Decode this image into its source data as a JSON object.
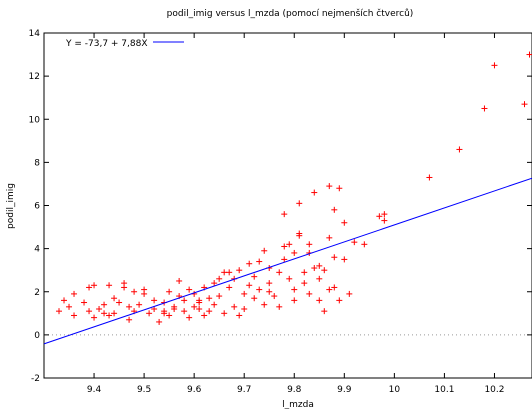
{
  "chart_data": {
    "type": "scatter",
    "title": "podil_imig versus l_mzda (pomocí nejmenších čtverců)",
    "xlabel": "l_mzda",
    "ylabel": "podil_imig",
    "xlim": [
      9.3,
      10.275
    ],
    "ylim": [
      -2,
      14
    ],
    "xticks": [
      "9.4",
      "9.5",
      "9.6",
      "9.7",
      "9.8",
      "9.9",
      "10",
      "10.1",
      "10.2"
    ],
    "yticks": [
      "-2",
      "0",
      "2",
      "4",
      "6",
      "8",
      "10",
      "12",
      "14"
    ],
    "grid": false,
    "zero_line": "dotted",
    "legend_position": "top-left",
    "fit": {
      "label": "Y = -73,7 + 7,88X",
      "intercept": -73.7,
      "slope": 7.88,
      "color": "#0000ff"
    },
    "marker": "+",
    "point_color": "#ff0000",
    "points": [
      [
        9.33,
        1.1
      ],
      [
        9.34,
        1.6
      ],
      [
        9.35,
        1.3
      ],
      [
        9.36,
        0.9
      ],
      [
        9.36,
        1.9
      ],
      [
        9.38,
        1.5
      ],
      [
        9.39,
        2.2
      ],
      [
        9.39,
        1.1
      ],
      [
        9.4,
        2.3
      ],
      [
        9.4,
        0.8
      ],
      [
        9.41,
        1.2
      ],
      [
        9.42,
        1.0
      ],
      [
        9.42,
        1.4
      ],
      [
        9.43,
        0.9
      ],
      [
        9.43,
        2.3
      ],
      [
        9.44,
        1.7
      ],
      [
        9.44,
        1.0
      ],
      [
        9.45,
        1.5
      ],
      [
        9.46,
        2.2
      ],
      [
        9.46,
        2.4
      ],
      [
        9.47,
        1.3
      ],
      [
        9.47,
        0.7
      ],
      [
        9.48,
        1.1
      ],
      [
        9.48,
        2.0
      ],
      [
        9.49,
        1.4
      ],
      [
        9.5,
        2.1
      ],
      [
        9.5,
        1.9
      ],
      [
        9.51,
        1.0
      ],
      [
        9.52,
        1.2
      ],
      [
        9.52,
        1.6
      ],
      [
        9.53,
        0.6
      ],
      [
        9.54,
        1.5
      ],
      [
        9.54,
        1.0
      ],
      [
        9.55,
        2.0
      ],
      [
        9.55,
        0.9
      ],
      [
        9.56,
        1.3
      ],
      [
        9.56,
        1.2
      ],
      [
        9.57,
        2.5
      ],
      [
        9.57,
        1.8
      ],
      [
        9.58,
        1.6
      ],
      [
        9.58,
        1.1
      ],
      [
        9.59,
        2.1
      ],
      [
        9.59,
        0.8
      ],
      [
        9.6,
        1.3
      ],
      [
        9.6,
        1.9
      ],
      [
        9.61,
        1.6
      ],
      [
        9.61,
        1.2
      ],
      [
        9.62,
        2.2
      ],
      [
        9.62,
        0.9
      ],
      [
        9.63,
        1.7
      ],
      [
        9.63,
        1.1
      ],
      [
        9.64,
        2.4
      ],
      [
        9.64,
        1.4
      ],
      [
        9.65,
        2.6
      ],
      [
        9.65,
        1.8
      ],
      [
        9.66,
        2.9
      ],
      [
        9.66,
        1.0
      ],
      [
        9.67,
        2.2
      ],
      [
        9.67,
        2.9
      ],
      [
        9.68,
        1.3
      ],
      [
        9.68,
        2.6
      ],
      [
        9.69,
        3.0
      ],
      [
        9.69,
        0.9
      ],
      [
        9.7,
        1.9
      ],
      [
        9.7,
        1.2
      ],
      [
        9.71,
        3.3
      ],
      [
        9.71,
        2.3
      ],
      [
        9.72,
        2.7
      ],
      [
        9.72,
        1.7
      ],
      [
        9.73,
        3.4
      ],
      [
        9.73,
        2.1
      ],
      [
        9.74,
        3.9
      ],
      [
        9.74,
        1.4
      ],
      [
        9.75,
        3.1
      ],
      [
        9.75,
        2.4
      ],
      [
        9.76,
        1.8
      ],
      [
        9.77,
        2.9
      ],
      [
        9.77,
        1.3
      ],
      [
        9.78,
        5.6
      ],
      [
        9.78,
        3.5
      ],
      [
        9.78,
        4.1
      ],
      [
        9.79,
        2.6
      ],
      [
        9.79,
        4.2
      ],
      [
        9.8,
        2.1
      ],
      [
        9.8,
        3.8
      ],
      [
        9.8,
        1.6
      ],
      [
        9.81,
        4.6
      ],
      [
        9.81,
        4.7
      ],
      [
        9.81,
        6.1
      ],
      [
        9.82,
        2.9
      ],
      [
        9.82,
        2.4
      ],
      [
        9.83,
        1.9
      ],
      [
        9.83,
        3.8
      ],
      [
        9.83,
        4.2
      ],
      [
        9.84,
        6.6
      ],
      [
        9.84,
        3.1
      ],
      [
        9.85,
        1.6
      ],
      [
        9.85,
        2.6
      ],
      [
        9.86,
        3.0
      ],
      [
        9.86,
        1.1
      ],
      [
        9.87,
        6.9
      ],
      [
        9.87,
        4.5
      ],
      [
        9.87,
        2.1
      ],
      [
        9.88,
        5.8
      ],
      [
        9.88,
        3.6
      ],
      [
        9.88,
        2.2
      ],
      [
        9.89,
        1.6
      ],
      [
        9.89,
        6.8
      ],
      [
        9.9,
        5.2
      ],
      [
        9.9,
        3.5
      ],
      [
        9.91,
        1.9
      ],
      [
        9.92,
        4.3
      ],
      [
        9.94,
        4.2
      ],
      [
        9.97,
        5.5
      ],
      [
        9.98,
        5.6
      ],
      [
        9.98,
        5.3
      ],
      [
        10.07,
        7.3
      ],
      [
        10.13,
        8.6
      ],
      [
        10.18,
        10.5
      ],
      [
        10.2,
        12.5
      ],
      [
        10.26,
        10.7
      ],
      [
        10.27,
        13.0
      ],
      [
        9.54,
        1.1
      ],
      [
        9.61,
        1.5
      ],
      [
        9.75,
        2.0
      ],
      [
        9.85,
        3.2
      ]
    ]
  }
}
